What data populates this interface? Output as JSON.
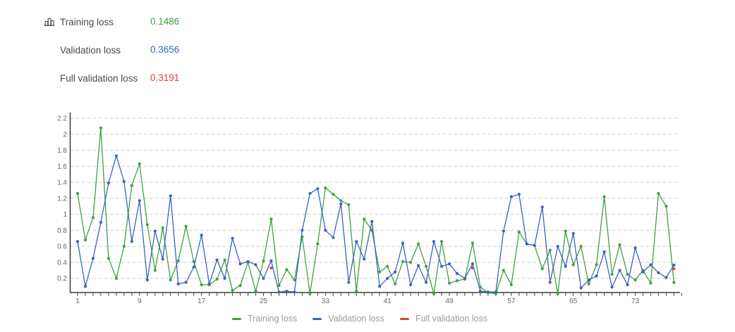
{
  "header": {
    "icon": "bar-chart-icon",
    "rows": [
      {
        "label": "Training loss",
        "value": "0.1486",
        "color": "#3fa045"
      },
      {
        "label": "Validation loss",
        "value": "0.3656",
        "color": "#3a63be"
      },
      {
        "label": "Full validation loss",
        "value": "0.3191",
        "color": "#d9453a"
      }
    ]
  },
  "chart_data": {
    "type": "line",
    "title": "",
    "xlabel": "",
    "ylabel": "",
    "x": [
      1,
      2,
      3,
      4,
      5,
      6,
      7,
      8,
      9,
      10,
      11,
      12,
      13,
      14,
      15,
      16,
      17,
      18,
      19,
      20,
      21,
      22,
      23,
      24,
      25,
      26,
      27,
      28,
      29,
      30,
      31,
      32,
      33,
      34,
      35,
      36,
      37,
      38,
      39,
      40,
      41,
      42,
      43,
      44,
      45,
      46,
      47,
      48,
      49,
      50,
      51,
      52,
      53,
      54,
      55,
      56,
      57,
      58,
      59,
      60,
      61,
      62,
      63,
      64,
      65,
      66,
      67,
      68,
      69,
      70,
      71,
      72,
      73,
      74,
      75,
      76,
      77,
      78
    ],
    "series": [
      {
        "name": "Training loss",
        "color": "#3fa045",
        "values": [
          1.26,
          0.68,
          0.96,
          2.08,
          0.45,
          0.2,
          0.6,
          1.36,
          1.63,
          0.87,
          0.3,
          0.83,
          0.18,
          0.42,
          0.85,
          0.41,
          0.12,
          0.12,
          0.19,
          0.43,
          0.05,
          0.11,
          0.4,
          0.04,
          0.42,
          0.94,
          0.11,
          0.31,
          0.18,
          0.72,
          0.01,
          0.63,
          1.33,
          1.25,
          1.17,
          1.12,
          0.04,
          0.94,
          0.8,
          0.28,
          0.35,
          0.13,
          0.41,
          0.4,
          0.63,
          0.35,
          0.01,
          0.66,
          0.14,
          0.17,
          0.19,
          0.64,
          0.09,
          0.02,
          0.01,
          0.3,
          0.12,
          0.78,
          0.63,
          0.61,
          0.32,
          0.55,
          0.01,
          0.79,
          0.37,
          0.6,
          0.13,
          0.37,
          1.22,
          0.25,
          0.62,
          0.25,
          0.18,
          0.3,
          0.14,
          1.26,
          1.1,
          0.1486
        ]
      },
      {
        "name": "Validation loss",
        "color": "#3a63be",
        "values": [
          0.66,
          0.1,
          0.45,
          0.9,
          1.39,
          1.73,
          1.41,
          0.66,
          1.17,
          0.18,
          0.79,
          0.44,
          1.23,
          0.13,
          0.15,
          0.34,
          0.74,
          0.13,
          0.43,
          0.2,
          0.7,
          0.38,
          0.41,
          0.37,
          0.2,
          0.42,
          0.03,
          0.04,
          0.03,
          0.8,
          1.26,
          1.32,
          0.8,
          0.71,
          1.13,
          0.15,
          0.66,
          0.44,
          0.91,
          0.1,
          0.2,
          0.28,
          0.64,
          0.12,
          0.36,
          0.15,
          0.66,
          0.35,
          0.38,
          0.26,
          0.2,
          0.38,
          0.04,
          0.03,
          0.03,
          0.79,
          1.22,
          1.25,
          0.63,
          0.61,
          1.09,
          0.15,
          0.6,
          0.35,
          0.76,
          0.08,
          0.18,
          0.23,
          0.53,
          0.09,
          0.3,
          0.12,
          0.58,
          0.28,
          0.37,
          0.27,
          0.21,
          0.3656
        ]
      },
      {
        "name": "Full validation loss",
        "color": "#d9453a",
        "points": [
          {
            "x": 26,
            "y": 0.33
          },
          {
            "x": 52,
            "y": 0.33
          },
          {
            "x": 78,
            "y": 0.3191
          }
        ]
      }
    ],
    "yticks": [
      0.2,
      0.4,
      0.6,
      0.8,
      1,
      1.2,
      1.4,
      1.6,
      1.8,
      2,
      2.2
    ],
    "xticks": [
      1,
      9,
      17,
      25,
      33,
      41,
      49,
      57,
      65,
      73
    ],
    "ylim": [
      0,
      2.3
    ],
    "xlim": [
      1,
      79
    ],
    "grid": "horizontal-dashed",
    "legend_position": "bottom-center"
  }
}
